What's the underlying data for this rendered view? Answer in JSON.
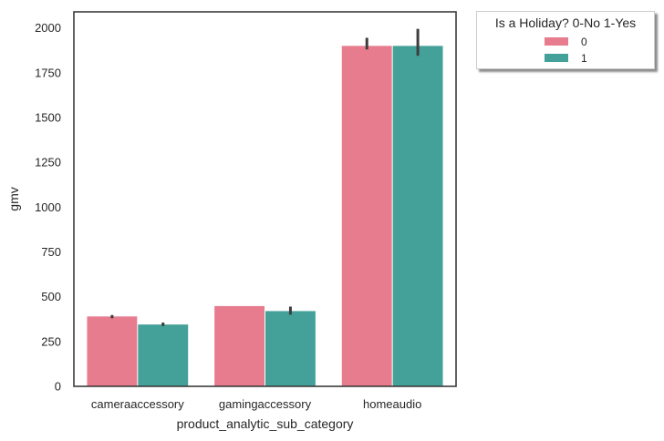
{
  "chart_data": {
    "type": "bar",
    "categories": [
      "cameraaccessory",
      "gamingaccessory",
      "homeaudio"
    ],
    "series": [
      {
        "name": "0",
        "color": "#e77c8e",
        "values": [
          390,
          448,
          1900
        ],
        "err_low": [
          380,
          448,
          1880
        ],
        "err_high": [
          398,
          448,
          1945
        ]
      },
      {
        "name": "1",
        "color": "#44a199",
        "values": [
          345,
          420,
          1900
        ],
        "err_low": [
          336,
          400,
          1845
        ],
        "err_high": [
          356,
          445,
          1995
        ]
      }
    ],
    "xlabel": "product_analytic_sub_category",
    "ylabel": "gmv",
    "ylim": [
      0,
      2090
    ],
    "yticks": [
      0,
      250,
      500,
      750,
      1000,
      1250,
      1500,
      1750,
      2000
    ],
    "grid": false,
    "legend": {
      "title": "Is a Holiday? 0-No 1-Yes",
      "placement": "outside-upper-right",
      "entries": [
        "0",
        "1"
      ]
    }
  }
}
